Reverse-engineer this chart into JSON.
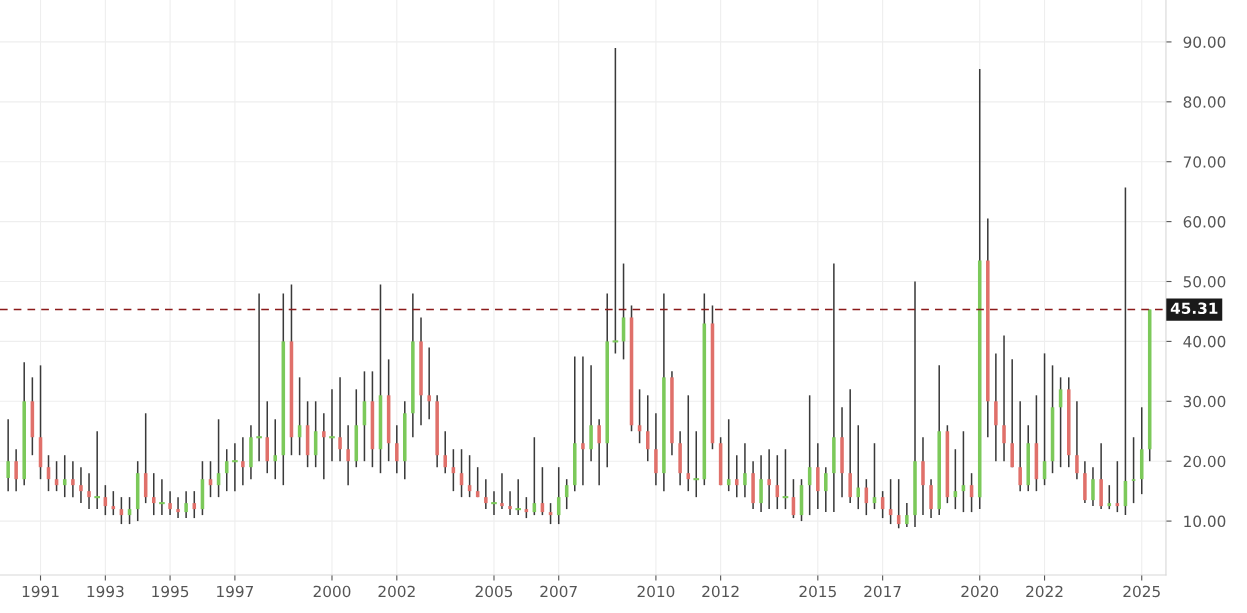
{
  "chart_data": {
    "type": "candlestick",
    "x": [
      "1990-01",
      "1990-04",
      "1990-07",
      "1990-10",
      "1991-01",
      "1991-04",
      "1991-07",
      "1991-10",
      "1992-01",
      "1992-04",
      "1992-07",
      "1992-10",
      "1993-01",
      "1993-04",
      "1993-07",
      "1993-10",
      "1994-01",
      "1994-04",
      "1994-07",
      "1994-10",
      "1995-01",
      "1995-04",
      "1995-07",
      "1995-10",
      "1996-01",
      "1996-04",
      "1996-07",
      "1996-10",
      "1997-01",
      "1997-04",
      "1997-07",
      "1997-10",
      "1998-01",
      "1998-04",
      "1998-07",
      "1998-10",
      "1999-01",
      "1999-04",
      "1999-07",
      "1999-10",
      "2000-01",
      "2000-04",
      "2000-07",
      "2000-10",
      "2001-01",
      "2001-04",
      "2001-07",
      "2001-10",
      "2002-01",
      "2002-04",
      "2002-07",
      "2002-10",
      "2003-01",
      "2003-04",
      "2003-07",
      "2003-10",
      "2004-01",
      "2004-04",
      "2004-07",
      "2004-10",
      "2005-01",
      "2005-04",
      "2005-07",
      "2005-10",
      "2006-01",
      "2006-04",
      "2006-07",
      "2006-10",
      "2007-01",
      "2007-04",
      "2007-07",
      "2007-10",
      "2008-01",
      "2008-04",
      "2008-07",
      "2008-10",
      "2009-01",
      "2009-04",
      "2009-07",
      "2009-10",
      "2010-01",
      "2010-04",
      "2010-07",
      "2010-10",
      "2011-01",
      "2011-04",
      "2011-07",
      "2011-10",
      "2012-01",
      "2012-04",
      "2012-07",
      "2012-10",
      "2013-01",
      "2013-04",
      "2013-07",
      "2013-10",
      "2014-01",
      "2014-04",
      "2014-07",
      "2014-10",
      "2015-01",
      "2015-04",
      "2015-07",
      "2015-10",
      "2016-01",
      "2016-04",
      "2016-07",
      "2016-10",
      "2017-01",
      "2017-04",
      "2017-07",
      "2017-10",
      "2018-01",
      "2018-04",
      "2018-07",
      "2018-10",
      "2019-01",
      "2019-04",
      "2019-07",
      "2019-10",
      "2020-01",
      "2020-04",
      "2020-07",
      "2020-10",
      "2021-01",
      "2021-04",
      "2021-07",
      "2021-10",
      "2022-01",
      "2022-04",
      "2022-07",
      "2022-10",
      "2023-01",
      "2023-04",
      "2023-07",
      "2023-10",
      "2024-01",
      "2024-04",
      "2024-07",
      "2024-10",
      "2025-01",
      "2025-04"
    ],
    "ohlc": [
      [
        17.2,
        27,
        15,
        20
      ],
      [
        20,
        22,
        15,
        17
      ],
      [
        17,
        36.5,
        16,
        30
      ],
      [
        30,
        34,
        21,
        24
      ],
      [
        24,
        36,
        17,
        19
      ],
      [
        19,
        21,
        15,
        17
      ],
      [
        17,
        20,
        15,
        16
      ],
      [
        16,
        21,
        14,
        17
      ],
      [
        17,
        20,
        14,
        16
      ],
      [
        16,
        19,
        13,
        15
      ],
      [
        15,
        18,
        12,
        14
      ],
      [
        14,
        25,
        12,
        14
      ],
      [
        14,
        16,
        11,
        12.5
      ],
      [
        12.5,
        15,
        11,
        12
      ],
      [
        12,
        14,
        9.5,
        11
      ],
      [
        11,
        14,
        9.5,
        12
      ],
      [
        12,
        20,
        10,
        18
      ],
      [
        18,
        28,
        13,
        14
      ],
      [
        14,
        18,
        11,
        13
      ],
      [
        13,
        17,
        11,
        13
      ],
      [
        13,
        15,
        11,
        12
      ],
      [
        12,
        14,
        10.5,
        11.5
      ],
      [
        11.5,
        15,
        10.5,
        13
      ],
      [
        13,
        15,
        10.5,
        12
      ],
      [
        12,
        20,
        11,
        17
      ],
      [
        17,
        20,
        14,
        16
      ],
      [
        16,
        27,
        14,
        18
      ],
      [
        18,
        22,
        15,
        20
      ],
      [
        20,
        23,
        15,
        20
      ],
      [
        20,
        24,
        16,
        19
      ],
      [
        19,
        26,
        17,
        24
      ],
      [
        24,
        48,
        20,
        24
      ],
      [
        24,
        30,
        18,
        20
      ],
      [
        20,
        27,
        17,
        21
      ],
      [
        21,
        48,
        16,
        40
      ],
      [
        40,
        49.5,
        21,
        24
      ],
      [
        24,
        34,
        21,
        26
      ],
      [
        26,
        30,
        19,
        21
      ],
      [
        21,
        30,
        19,
        25
      ],
      [
        25,
        28,
        17,
        24
      ],
      [
        24,
        32,
        20,
        24
      ],
      [
        24,
        34,
        20,
        22
      ],
      [
        22,
        26,
        16,
        20
      ],
      [
        20,
        32,
        19,
        26
      ],
      [
        26,
        35,
        20,
        30
      ],
      [
        30,
        35,
        19,
        22
      ],
      [
        22,
        49.5,
        18,
        31
      ],
      [
        31,
        37,
        20,
        23
      ],
      [
        23,
        26,
        18,
        20
      ],
      [
        20,
        30,
        17,
        28
      ],
      [
        28,
        48,
        24,
        40
      ],
      [
        40,
        44,
        26,
        31
      ],
      [
        31,
        39,
        27,
        30
      ],
      [
        30,
        31,
        19,
        21
      ],
      [
        21,
        25,
        18,
        19
      ],
      [
        19,
        22,
        15,
        18
      ],
      [
        18,
        22,
        14,
        16
      ],
      [
        16,
        21,
        14,
        15
      ],
      [
        15,
        19,
        14,
        14
      ],
      [
        14,
        17,
        12,
        13
      ],
      [
        13,
        15,
        11,
        13
      ],
      [
        13,
        18,
        12,
        12.5
      ],
      [
        12.5,
        15,
        11,
        12
      ],
      [
        12,
        17,
        11,
        12
      ],
      [
        12,
        14,
        10.5,
        11.5
      ],
      [
        11.5,
        24,
        11,
        13
      ],
      [
        13,
        19,
        11,
        11.5
      ],
      [
        11.5,
        13,
        9.5,
        11
      ],
      [
        11,
        19,
        9.5,
        14
      ],
      [
        14,
        17,
        12,
        16
      ],
      [
        16,
        37.5,
        15,
        23
      ],
      [
        23,
        37.5,
        16,
        22
      ],
      [
        22,
        36,
        20,
        26
      ],
      [
        26,
        27,
        16,
        23
      ],
      [
        23,
        48,
        19,
        40
      ],
      [
        40,
        89,
        38,
        40
      ],
      [
        40,
        53,
        37,
        44
      ],
      [
        44,
        46,
        25,
        26
      ],
      [
        26,
        32,
        23,
        25
      ],
      [
        25,
        31,
        20,
        22
      ],
      [
        22,
        28,
        16,
        18
      ],
      [
        18,
        48,
        15,
        34
      ],
      [
        34,
        35,
        21,
        23
      ],
      [
        23,
        25,
        16,
        18
      ],
      [
        18,
        31,
        15,
        17
      ],
      [
        17,
        25,
        14,
        17
      ],
      [
        17,
        48,
        16,
        43
      ],
      [
        43,
        46,
        22,
        23
      ],
      [
        23,
        24,
        16,
        16
      ],
      [
        16,
        27,
        15,
        17
      ],
      [
        17,
        21,
        14,
        16
      ],
      [
        16,
        23,
        14,
        18
      ],
      [
        18,
        20,
        12,
        13
      ],
      [
        13,
        21,
        11.5,
        17
      ],
      [
        17,
        22,
        12,
        16
      ],
      [
        16,
        21,
        12,
        14
      ],
      [
        14,
        22,
        12,
        14
      ],
      [
        14,
        17,
        10.5,
        11
      ],
      [
        11,
        17,
        10,
        16
      ],
      [
        16,
        31,
        11,
        19
      ],
      [
        19,
        23,
        12,
        15
      ],
      [
        15,
        19,
        11.5,
        18
      ],
      [
        18,
        53,
        11.5,
        24
      ],
      [
        24,
        29,
        14,
        18
      ],
      [
        18,
        32,
        13,
        14
      ],
      [
        14,
        26,
        12,
        15.6
      ],
      [
        15.6,
        17,
        11,
        13
      ],
      [
        13,
        23,
        12,
        14
      ],
      [
        14,
        15,
        10.5,
        12
      ],
      [
        12,
        17,
        9.5,
        11
      ],
      [
        11,
        17,
        8.8,
        9.5
      ],
      [
        9.5,
        13,
        9,
        11
      ],
      [
        11,
        50,
        9,
        20
      ],
      [
        20,
        24,
        11,
        16
      ],
      [
        16,
        17,
        10.5,
        12
      ],
      [
        12,
        36,
        11,
        25
      ],
      [
        25,
        26,
        13,
        14
      ],
      [
        14,
        22,
        12,
        15
      ],
      [
        15,
        25,
        11.5,
        16
      ],
      [
        16,
        18,
        11.5,
        14
      ],
      [
        14,
        85.5,
        12,
        53.5
      ],
      [
        53.5,
        60.5,
        24,
        30
      ],
      [
        30,
        38,
        20,
        26
      ],
      [
        26,
        41,
        20,
        23
      ],
      [
        23,
        37,
        19,
        19
      ],
      [
        19,
        30,
        15,
        16
      ],
      [
        16,
        26,
        15,
        23
      ],
      [
        23,
        31,
        15,
        17
      ],
      [
        17,
        38,
        16,
        20
      ],
      [
        20,
        36,
        18,
        29
      ],
      [
        29,
        34,
        19,
        32
      ],
      [
        32,
        34,
        19,
        21
      ],
      [
        21,
        30,
        17,
        18
      ],
      [
        18,
        20,
        13,
        13.5
      ],
      [
        13.5,
        19,
        12.5,
        17
      ],
      [
        17,
        23,
        12,
        12.5
      ],
      [
        12.5,
        16,
        12,
        13
      ],
      [
        13,
        20,
        11.5,
        12.5
      ],
      [
        12.5,
        65.7,
        11,
        16.7
      ],
      [
        16.7,
        24,
        13,
        17
      ],
      [
        17,
        29,
        14.5,
        22
      ],
      [
        22,
        45.31,
        20,
        45.31
      ]
    ],
    "xlim": [
      "1989-10",
      "2025-10"
    ],
    "xticks": [
      "1991",
      "1993",
      "1995",
      "1997",
      "2000",
      "2002",
      "2005",
      "2007",
      "2010",
      "2012",
      "2015",
      "2017",
      "2020",
      "2022",
      "2025"
    ],
    "ylim": [
      1,
      97
    ],
    "yticks": [
      {
        "value": 10,
        "label": "10.00"
      },
      {
        "value": 20,
        "label": "20.00"
      },
      {
        "value": 30,
        "label": "30.00"
      },
      {
        "value": 40,
        "label": "40.00"
      },
      {
        "value": 50,
        "label": "50.00"
      },
      {
        "value": 60,
        "label": "60.00"
      },
      {
        "value": 70,
        "label": "70.00"
      },
      {
        "value": 80,
        "label": "80.00"
      },
      {
        "value": 90,
        "label": "90.00"
      }
    ],
    "ref_lines": [
      {
        "axis": "y",
        "value": 45.31,
        "label": "45.31",
        "color": "#8b1a1a",
        "line_style": "dashed"
      }
    ],
    "grid": true
  }
}
